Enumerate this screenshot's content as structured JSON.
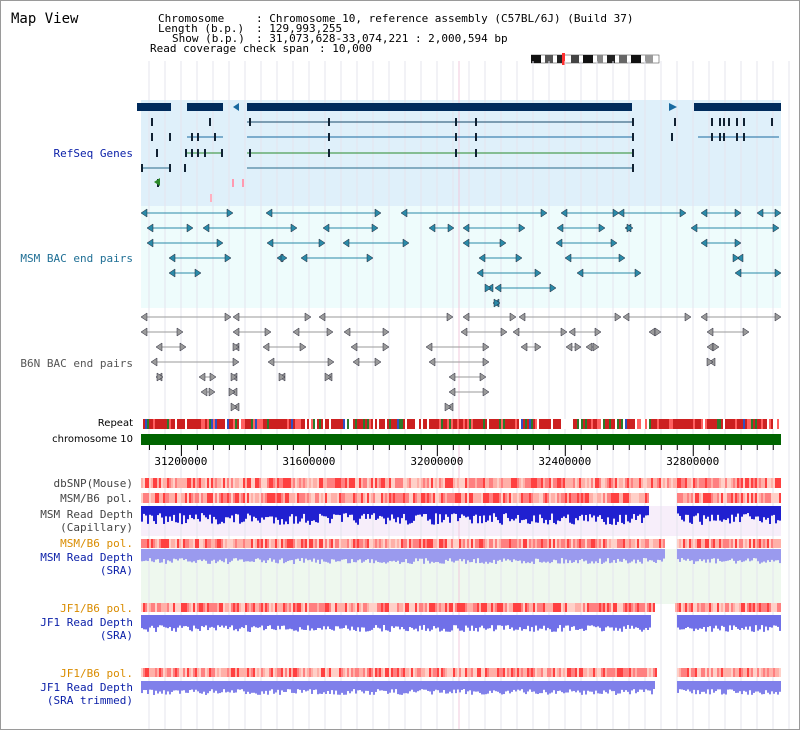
{
  "title": "Map View",
  "header": {
    "chromosome_key": "Chromosome",
    "chromosome_value": ": Chromosome 10, reference assembly (C57BL/6J) (Build 37)",
    "length_key": "Length (b.p.)",
    "length_value": ": 129,993,255",
    "show_key": "Show (b.p.)",
    "show_value": ": 31,073,628-33,074,221 : 2,000,594 bp",
    "span_key": "Read coverage check span",
    "span_value": ": 10,000"
  },
  "tracks": {
    "refseq": "RefSeq Genes",
    "msm_bac": "MSM BAC end pairs",
    "b6n_bac": "B6N BAC end pairs",
    "repeat": "Repeat",
    "chromosome": "chromosome 10",
    "dbsnp": "dbSNP(Mouse)",
    "msm_b6_pol_1": "MSM/B6 pol.",
    "msm_read_depth_cap_1": "MSM Read Depth",
    "msm_read_depth_cap_2": "(Capillary)",
    "msm_b6_pol_2": "MSM/B6 pol.",
    "msm_read_depth_sra_1": "MSM Read Depth",
    "msm_read_depth_sra_2": "(SRA)",
    "jf1_b6_pol_1": "JF1/B6 pol.",
    "jf1_read_depth_sra_1": "JF1 Read Depth",
    "jf1_read_depth_sra_2": "(SRA)",
    "jf1_b6_pol_2": "JF1/B6 pol.",
    "jf1_read_depth_trim_1": "JF1 Read Depth",
    "jf1_read_depth_trim_2": "(SRA trimmed)"
  },
  "axis": {
    "ticks": [
      "31200000",
      "31600000",
      "32000000",
      "32400000",
      "32800000"
    ],
    "tick_values": [
      31200000,
      31600000,
      32000000,
      32400000,
      32800000
    ],
    "start": 31073628,
    "end": 33074221
  },
  "colors": {
    "refseq_bg": "#dff0fa",
    "bac_bg": "#eefcfc",
    "gene_dark": "#002b5c",
    "msm_bac": "#2a7a9c",
    "b6n_bac": "#707070",
    "chrom_green": "#006400",
    "label_blue": "#0a1fa8",
    "label_orange": "#d98c00",
    "label_gray": "#333333"
  }
}
